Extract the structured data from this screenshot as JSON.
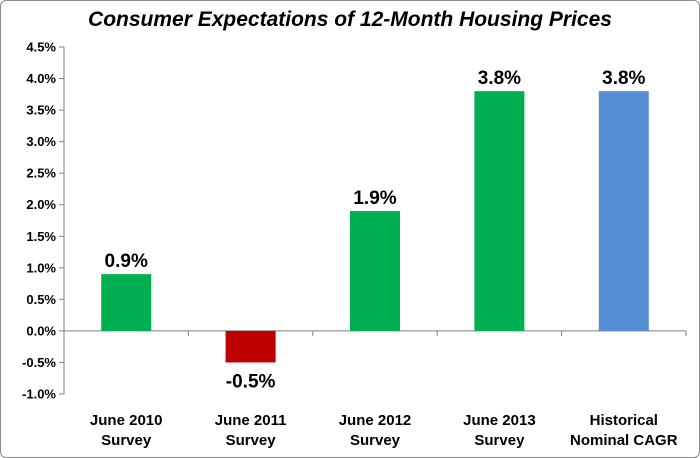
{
  "chart_data": {
    "type": "bar",
    "title": "Consumer Expectations of 12-Month Housing Prices",
    "xlabel": "",
    "ylabel": "",
    "ylim": [
      -1.0,
      4.5
    ],
    "ytick_step": 0.5,
    "ytick_format": "percent_1dp",
    "grid": false,
    "legend": "none",
    "categories": [
      [
        "June 2010",
        "Survey"
      ],
      [
        "June 2011",
        "Survey"
      ],
      [
        "June 2012",
        "Survey"
      ],
      [
        "June 2013",
        "Survey"
      ],
      [
        "Historical",
        "Nominal CAGR"
      ]
    ],
    "values": [
      0.9,
      -0.5,
      1.9,
      3.8,
      3.8
    ],
    "data_labels": [
      "0.9%",
      "-0.5%",
      "1.9%",
      "3.8%",
      "3.8%"
    ],
    "colors": [
      "#00b050",
      "#c00000",
      "#00b050",
      "#00b050",
      "#558ed5"
    ]
  }
}
